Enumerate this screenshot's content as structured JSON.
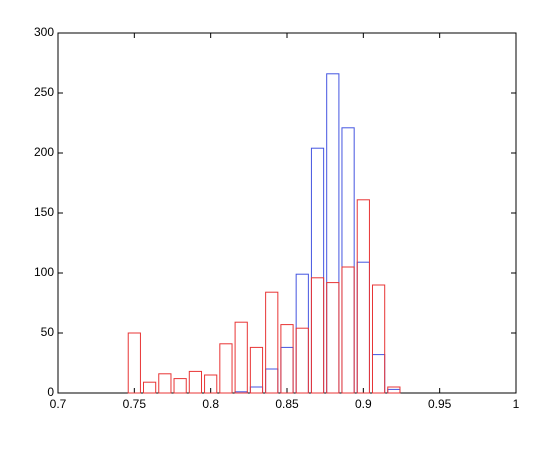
{
  "chart_data": {
    "type": "bar",
    "x": [
      0.75,
      0.76,
      0.77,
      0.78,
      0.79,
      0.8,
      0.81,
      0.82,
      0.83,
      0.84,
      0.85,
      0.86,
      0.87,
      0.88,
      0.89,
      0.9,
      0.91,
      0.92
    ],
    "series": [
      {
        "color": "#4455e0",
        "values": [
          0,
          0,
          0,
          0,
          0,
          0,
          0,
          1,
          5,
          20,
          38,
          99,
          204,
          266,
          221,
          109,
          32,
          3
        ]
      },
      {
        "color": "#e83535",
        "values": [
          50,
          9,
          16,
          12,
          18,
          15,
          41,
          59,
          38,
          84,
          57,
          54,
          96,
          92,
          105,
          161,
          90,
          5
        ]
      }
    ],
    "xlim": [
      0.7,
      1
    ],
    "xticks": [
      0.7,
      0.75,
      0.8,
      0.85,
      0.9,
      0.95,
      1
    ],
    "ylim": [
      0,
      300
    ],
    "yticks": [
      0,
      50,
      100,
      150,
      200,
      250,
      300
    ],
    "grid": false
  }
}
